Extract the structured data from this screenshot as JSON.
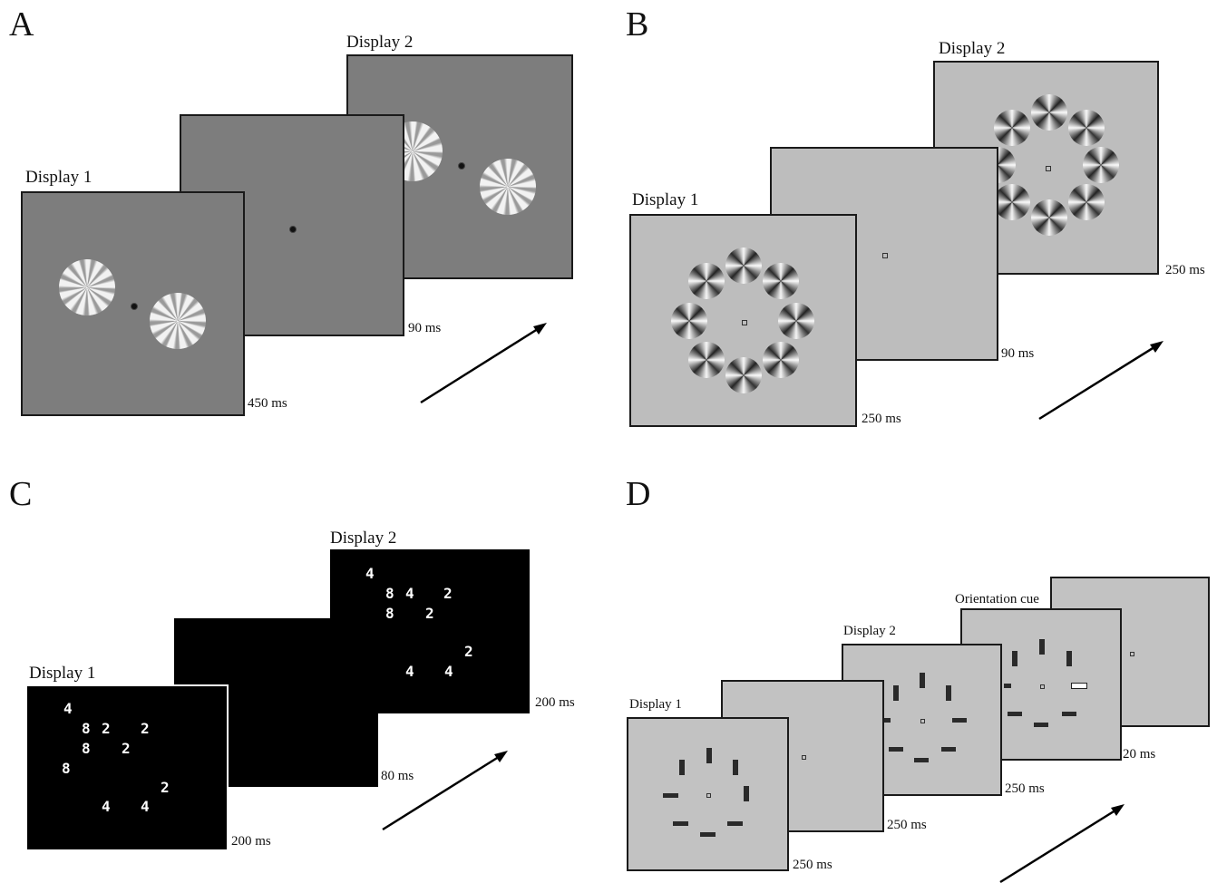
{
  "panels": {
    "A": {
      "letter": "A",
      "display1": "Display 1",
      "display2": "Display 2",
      "durations": [
        "450 ms",
        "90 ms"
      ]
    },
    "B": {
      "letter": "B",
      "display1": "Display 1",
      "display2": "Display 2",
      "durations": [
        "250 ms",
        "90 ms",
        "250 ms"
      ]
    },
    "C": {
      "letter": "C",
      "display1": "Display 1",
      "display2": "Display 2",
      "durations": [
        "200 ms",
        "80 ms",
        "200 ms"
      ],
      "display1_digits": [
        "4",
        "8",
        "2",
        "2",
        "8",
        "2",
        "8",
        "2",
        "4",
        "4"
      ],
      "display2_digits": [
        "4",
        "8",
        "4",
        "2",
        "8",
        "2",
        "2",
        "4",
        "4"
      ]
    },
    "D": {
      "letter": "D",
      "display1": "Display 1",
      "display2": "Display 2",
      "cue": "Orientation cue",
      "durations": [
        "250 ms",
        "250 ms",
        "250 ms",
        "20 ms"
      ]
    }
  },
  "colors": {
    "panelA_background": "#7d7d7d",
    "panelB_background": "#bdbdbd",
    "panelC_background": "#000000",
    "panelD_background": "#c2c2c2"
  }
}
